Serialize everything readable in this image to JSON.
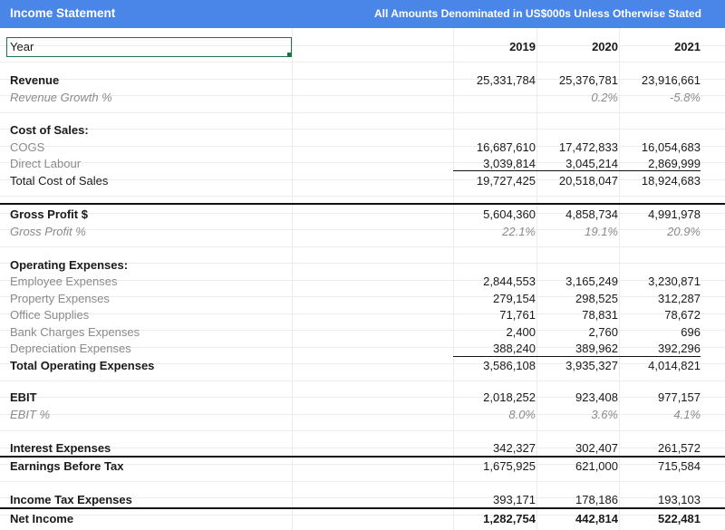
{
  "header": {
    "title": "Income Statement",
    "note": "All Amounts Denominated in US$000s Unless Otherwise Stated"
  },
  "year_row": {
    "label": "Year",
    "years": [
      "2019",
      "2020",
      "2021"
    ]
  },
  "sections": {
    "revenue": {
      "label": "Revenue",
      "values": [
        "25,331,784",
        "25,376,781",
        "23,916,661"
      ],
      "growth_label": "Revenue Growth %",
      "growth": [
        "",
        "0.2%",
        "-5.8%"
      ]
    },
    "cost_of_sales": {
      "label": "Cost of Sales:",
      "items": [
        {
          "label": "COGS",
          "values": [
            "16,687,610",
            "17,472,833",
            "16,054,683"
          ]
        },
        {
          "label": "Direct Labour",
          "values": [
            "3,039,814",
            "3,045,214",
            "2,869,999"
          ]
        }
      ],
      "total_label": "Total Cost of Sales",
      "total": [
        "19,727,425",
        "20,518,047",
        "18,924,683"
      ]
    },
    "gross_profit": {
      "label": "Gross Profit $",
      "values": [
        "5,604,360",
        "4,858,734",
        "4,991,978"
      ],
      "pct_label": "Gross Profit %",
      "pct": [
        "22.1%",
        "19.1%",
        "20.9%"
      ]
    },
    "opex": {
      "label": "Operating Expenses:",
      "items": [
        {
          "label": "Employee Expenses",
          "values": [
            "2,844,553",
            "3,165,249",
            "3,230,871"
          ]
        },
        {
          "label": "Property Expenses",
          "values": [
            "279,154",
            "298,525",
            "312,287"
          ]
        },
        {
          "label": "Office Supplies",
          "values": [
            "71,761",
            "78,831",
            "78,672"
          ]
        },
        {
          "label": "Bank Charges Expenses",
          "values": [
            "2,400",
            "2,760",
            "696"
          ]
        },
        {
          "label": "Depreciation Expenses",
          "values": [
            "388,240",
            "389,962",
            "392,296"
          ]
        }
      ],
      "total_label": "Total Operating Expenses",
      "total": [
        "3,586,108",
        "3,935,327",
        "4,014,821"
      ]
    },
    "ebit": {
      "label": "EBIT",
      "values": [
        "2,018,252",
        "923,408",
        "977,157"
      ],
      "pct_label": "EBIT %",
      "pct": [
        "8.0%",
        "3.6%",
        "4.1%"
      ]
    },
    "interest": {
      "label": "Interest Expenses",
      "values": [
        "342,327",
        "302,407",
        "261,572"
      ]
    },
    "ebt": {
      "label": "Earnings Before Tax",
      "values": [
        "1,675,925",
        "621,000",
        "715,584"
      ]
    },
    "tax": {
      "label": "Income Tax Expenses",
      "values": [
        "393,171",
        "178,186",
        "193,103"
      ]
    },
    "net_income": {
      "label": "Net Income",
      "values": [
        "1,282,754",
        "442,814",
        "522,481"
      ]
    }
  },
  "colors": {
    "header_bg": "#4a86e8",
    "selection": "#217346",
    "muted_text": "#8a8a8a"
  }
}
